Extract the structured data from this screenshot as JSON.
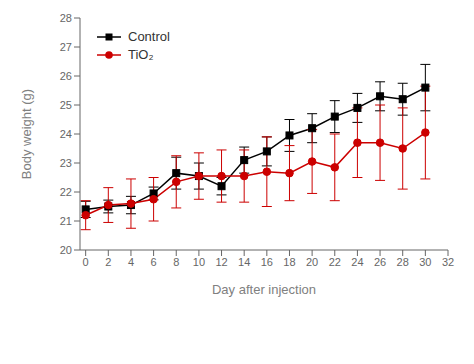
{
  "chart_data": {
    "type": "line",
    "xlabel": "Day after injection",
    "ylabel": "Body weight (g)",
    "x": [
      0,
      2,
      4,
      6,
      8,
      10,
      12,
      14,
      16,
      18,
      20,
      22,
      24,
      26,
      28,
      30
    ],
    "series": [
      {
        "name": "Control",
        "color": "#000000",
        "marker": "square",
        "values": [
          21.4,
          21.5,
          21.55,
          21.95,
          22.65,
          22.55,
          22.2,
          23.1,
          23.4,
          23.95,
          24.2,
          24.6,
          24.9,
          25.3,
          25.2,
          25.6
        ],
        "error": [
          0.28,
          0.22,
          0.3,
          0.22,
          0.55,
          0.45,
          0.3,
          0.45,
          0.5,
          0.55,
          0.5,
          0.55,
          0.5,
          0.5,
          0.55,
          0.8
        ]
      },
      {
        "name": "TiO₂",
        "color": "#cc0000",
        "marker": "circle",
        "values": [
          21.2,
          21.55,
          21.6,
          21.75,
          22.35,
          22.55,
          22.55,
          22.55,
          22.7,
          22.65,
          23.05,
          22.85,
          23.7,
          23.7,
          23.5,
          24.05
        ],
        "error": [
          0.5,
          0.6,
          0.85,
          0.75,
          0.9,
          0.8,
          0.9,
          0.9,
          1.2,
          0.95,
          1.1,
          1.15,
          1.2,
          1.3,
          1.4,
          1.6
        ]
      }
    ],
    "xlim": [
      -0.5,
      32
    ],
    "ylim": [
      20,
      28
    ],
    "xticks": [
      0,
      2,
      4,
      6,
      8,
      10,
      12,
      14,
      16,
      18,
      20,
      22,
      24,
      26,
      28,
      30,
      32
    ],
    "yticks": [
      20,
      21,
      22,
      23,
      24,
      25,
      26,
      27,
      28
    ],
    "grid": false,
    "legend": "upper left"
  }
}
